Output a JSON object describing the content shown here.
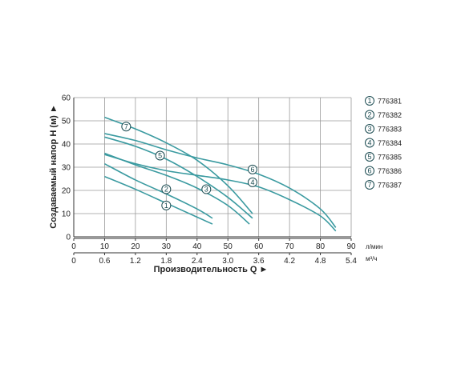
{
  "chart_data": {
    "type": "line",
    "title": "",
    "ylabel": "Создаваемый напор Н (м) ►",
    "xlabel": "Производительность Q ►",
    "ylim": [
      0,
      60
    ],
    "yticks": [
      0,
      10,
      20,
      30,
      40,
      50,
      60
    ],
    "xlim": [
      0,
      90
    ],
    "xticks": [
      0,
      10,
      20,
      30,
      40,
      50,
      60,
      70,
      80,
      90
    ],
    "x_unit": "л/мин",
    "x2ticks": [
      "0",
      "0.6",
      "1.2",
      "1.8",
      "2.4",
      "3.0",
      "3.6",
      "4.2",
      "4.8",
      "5.4"
    ],
    "x2_unit": "м³/ч",
    "grid": true,
    "legend_position": "right",
    "colors": {
      "curve": "#3a9aa0",
      "grid": "#9a9a9a",
      "axis": "#333333",
      "marker": "#1a4a50"
    },
    "series": [
      {
        "marker": "1",
        "name": "776381",
        "label_at": [
          30,
          13.5
        ],
        "points": [
          [
            10,
            26
          ],
          [
            20,
            20.5
          ],
          [
            30,
            14.5
          ],
          [
            40,
            8.5
          ],
          [
            45,
            5.5
          ]
        ]
      },
      {
        "marker": "2",
        "name": "776382",
        "label_at": [
          30,
          20.5
        ],
        "points": [
          [
            10,
            31.5
          ],
          [
            20,
            24.5
          ],
          [
            30,
            18.5
          ],
          [
            40,
            12
          ],
          [
            45,
            8
          ]
        ]
      },
      {
        "marker": "3",
        "name": "776383",
        "label_at": [
          43,
          20.5
        ],
        "points": [
          [
            10,
            36
          ],
          [
            20,
            31
          ],
          [
            30,
            26.5
          ],
          [
            40,
            21
          ],
          [
            50,
            13.5
          ],
          [
            57,
            5.5
          ]
        ]
      },
      {
        "marker": "4",
        "name": "776384",
        "label_at": [
          58,
          23.5
        ],
        "points": [
          [
            10,
            35.5
          ],
          [
            20,
            31.5
          ],
          [
            30,
            28.5
          ],
          [
            40,
            26.5
          ],
          [
            50,
            24.5
          ],
          [
            60,
            21.5
          ],
          [
            70,
            16
          ],
          [
            80,
            9
          ],
          [
            85,
            2.5
          ]
        ]
      },
      {
        "marker": "5",
        "name": "776385",
        "label_at": [
          28,
          35
        ],
        "points": [
          [
            10,
            43
          ],
          [
            20,
            39
          ],
          [
            30,
            33.5
          ],
          [
            40,
            26
          ],
          [
            50,
            17
          ],
          [
            58,
            8
          ]
        ]
      },
      {
        "marker": "6",
        "name": "776386",
        "label_at": [
          58,
          29
        ],
        "points": [
          [
            10,
            44.5
          ],
          [
            20,
            41.5
          ],
          [
            30,
            37.5
          ],
          [
            40,
            34
          ],
          [
            50,
            31
          ],
          [
            60,
            27
          ],
          [
            70,
            21
          ],
          [
            80,
            12
          ],
          [
            85,
            4
          ]
        ]
      },
      {
        "marker": "7",
        "name": "776387",
        "label_at": [
          17,
          47.5
        ],
        "points": [
          [
            10,
            51.5
          ],
          [
            20,
            46.5
          ],
          [
            30,
            40.5
          ],
          [
            40,
            33
          ],
          [
            50,
            22
          ],
          [
            58,
            10
          ]
        ]
      }
    ]
  }
}
